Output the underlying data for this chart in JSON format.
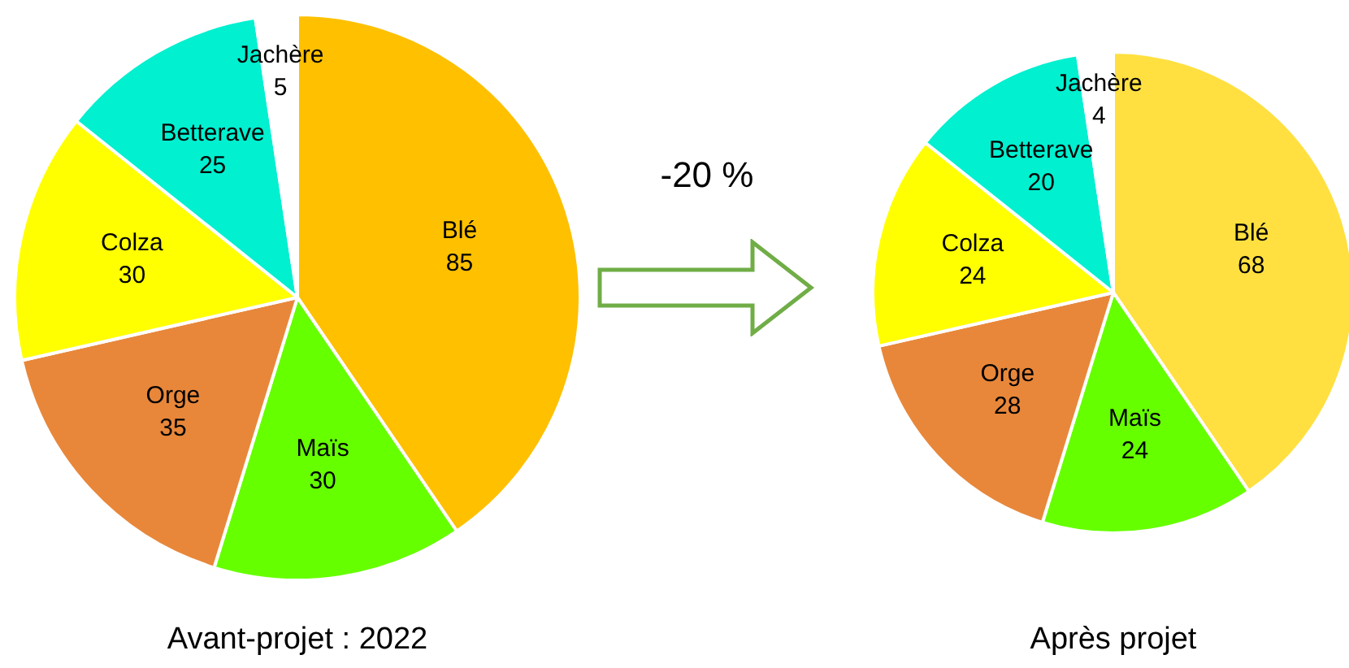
{
  "chart_data": [
    {
      "type": "pie",
      "title": "Avant-projet : 2022",
      "categories": [
        "Blé",
        "Maïs",
        "Orge",
        "Colza",
        "Betterave",
        "Jachère"
      ],
      "values": [
        85,
        30,
        35,
        30,
        25,
        5
      ],
      "colors": [
        "#ffc000",
        "#66ff00",
        "#e8873a",
        "#ffff00",
        "#00f0d0",
        "#ffffff"
      ],
      "data_labels": true,
      "legend": false,
      "annotations": [
        "-20 %"
      ]
    },
    {
      "type": "pie",
      "title": "Après projet",
      "categories": [
        "Blé",
        "Maïs",
        "Orge",
        "Colza",
        "Betterave",
        "Jachère"
      ],
      "values": [
        68,
        24,
        28,
        24,
        20,
        4
      ],
      "colors": [
        "#ffe040",
        "#66ff00",
        "#e8873a",
        "#ffff00",
        "#00f0d0",
        "#ffffff"
      ],
      "data_labels": true,
      "legend": false
    }
  ]
}
